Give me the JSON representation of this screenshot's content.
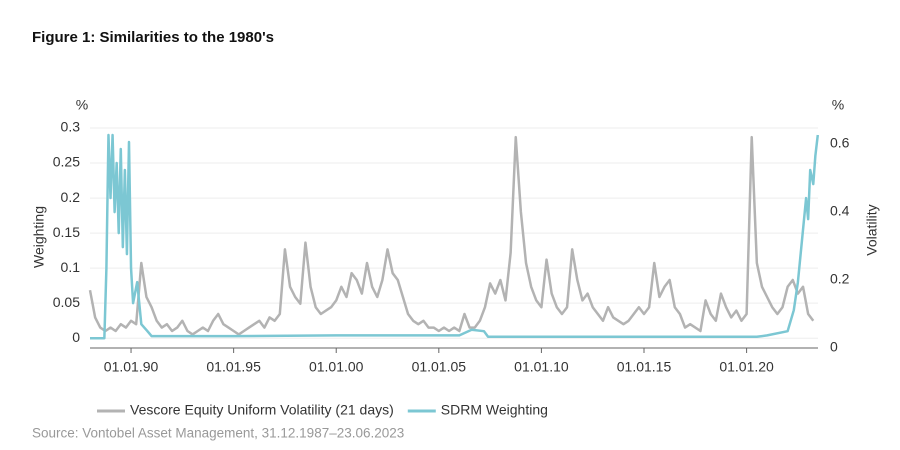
{
  "chart_data": {
    "type": "line",
    "title": "Figure 1: Similarities to the 1980's",
    "y_unit": "%",
    "y2_unit": "%",
    "ylabel": "Weighting",
    "y2label": "Volatility",
    "source": "Source: Vontobel Asset Management, 31.12.1987–23.06.2023",
    "xlim": [
      1988,
      2023.48
    ],
    "xticks": [
      {
        "value": 1990,
        "label": "01.01.90"
      },
      {
        "value": 1995,
        "label": "01.01.95"
      },
      {
        "value": 2000,
        "label": "01.01.00"
      },
      {
        "value": 2005,
        "label": "01.01.05"
      },
      {
        "value": 2010,
        "label": "01.01.10"
      },
      {
        "value": 2015,
        "label": "01.01.15"
      },
      {
        "value": 2020,
        "label": "01.01.20"
      }
    ],
    "ylim": [
      -0.014,
      0.3
    ],
    "yticks": [
      0,
      0.05,
      0.1,
      0.15,
      0.2,
      0.25,
      0.3
    ],
    "y2lim": [
      0,
      0.647
    ],
    "y2ticks": [
      0,
      0.2,
      0.4,
      0.6
    ],
    "grid": true,
    "series": [
      {
        "name": "Vescore Equity Uniform Volatility (21 days)",
        "color": "#b3b3b3",
        "axis": "y2",
        "x": [
          1988,
          1988.25,
          1988.5,
          1988.75,
          1989,
          1989.25,
          1989.5,
          1989.75,
          1990,
          1990.25,
          1990.5,
          1990.75,
          1991,
          1991.25,
          1991.5,
          1991.75,
          1992,
          1992.25,
          1992.5,
          1992.75,
          1993,
          1993.25,
          1993.5,
          1993.75,
          1994,
          1994.25,
          1994.5,
          1994.75,
          1995,
          1995.25,
          1995.5,
          1995.75,
          1996,
          1996.25,
          1996.5,
          1996.75,
          1997,
          1997.25,
          1997.5,
          1997.75,
          1998,
          1998.25,
          1998.5,
          1998.75,
          1999,
          1999.25,
          1999.5,
          1999.75,
          2000,
          2000.25,
          2000.5,
          2000.75,
          2001,
          2001.25,
          2001.5,
          2001.75,
          2002,
          2002.25,
          2002.5,
          2002.75,
          2003,
          2003.25,
          2003.5,
          2003.75,
          2004,
          2004.25,
          2004.5,
          2004.75,
          2005,
          2005.25,
          2005.5,
          2005.75,
          2006,
          2006.25,
          2006.5,
          2006.75,
          2007,
          2007.25,
          2007.5,
          2007.75,
          2008,
          2008.25,
          2008.5,
          2008.75,
          2009,
          2009.25,
          2009.5,
          2009.75,
          2010,
          2010.25,
          2010.5,
          2010.75,
          2011,
          2011.25,
          2011.5,
          2011.75,
          2012,
          2012.25,
          2012.5,
          2012.75,
          2013,
          2013.25,
          2013.5,
          2013.75,
          2014,
          2014.25,
          2014.5,
          2014.75,
          2015,
          2015.25,
          2015.5,
          2015.75,
          2016,
          2016.25,
          2016.5,
          2016.75,
          2017,
          2017.25,
          2017.5,
          2017.75,
          2018,
          2018.25,
          2018.5,
          2018.75,
          2019,
          2019.25,
          2019.5,
          2019.75,
          2020,
          2020.25,
          2020.5,
          2020.75,
          2021,
          2021.25,
          2021.5,
          2021.75,
          2022,
          2022.25,
          2022.5,
          2022.75,
          2023,
          2023.25
        ],
        "values": [
          0.17,
          0.09,
          0.06,
          0.05,
          0.06,
          0.05,
          0.07,
          0.06,
          0.08,
          0.07,
          0.25,
          0.15,
          0.12,
          0.08,
          0.06,
          0.07,
          0.05,
          0.06,
          0.08,
          0.05,
          0.04,
          0.05,
          0.06,
          0.05,
          0.08,
          0.1,
          0.07,
          0.06,
          0.05,
          0.04,
          0.05,
          0.06,
          0.07,
          0.08,
          0.06,
          0.09,
          0.08,
          0.1,
          0.29,
          0.18,
          0.15,
          0.13,
          0.31,
          0.18,
          0.12,
          0.1,
          0.11,
          0.12,
          0.14,
          0.18,
          0.15,
          0.22,
          0.2,
          0.16,
          0.25,
          0.18,
          0.15,
          0.2,
          0.29,
          0.22,
          0.2,
          0.15,
          0.1,
          0.08,
          0.07,
          0.08,
          0.06,
          0.06,
          0.05,
          0.06,
          0.05,
          0.06,
          0.05,
          0.1,
          0.06,
          0.06,
          0.08,
          0.12,
          0.19,
          0.16,
          0.2,
          0.14,
          0.28,
          0.62,
          0.4,
          0.25,
          0.18,
          0.14,
          0.12,
          0.26,
          0.16,
          0.12,
          0.1,
          0.12,
          0.29,
          0.2,
          0.14,
          0.16,
          0.12,
          0.1,
          0.08,
          0.12,
          0.09,
          0.08,
          0.07,
          0.08,
          0.1,
          0.12,
          0.1,
          0.12,
          0.25,
          0.15,
          0.18,
          0.2,
          0.12,
          0.1,
          0.06,
          0.07,
          0.06,
          0.05,
          0.14,
          0.1,
          0.08,
          0.16,
          0.12,
          0.09,
          0.11,
          0.08,
          0.1,
          0.62,
          0.25,
          0.18,
          0.15,
          0.12,
          0.1,
          0.12,
          0.18,
          0.2,
          0.16,
          0.18,
          0.1,
          0.08
        ]
      },
      {
        "name": "SDRM Weighting",
        "color": "#7cc7d3",
        "axis": "y",
        "x": [
          1988,
          1988.5,
          1988.7,
          1988.8,
          1988.9,
          1989,
          1989.1,
          1989.2,
          1989.3,
          1989.4,
          1989.5,
          1989.6,
          1989.7,
          1989.8,
          1989.9,
          1990,
          1990.1,
          1990.3,
          1990.5,
          1990.8,
          1991,
          1995,
          2000,
          2006,
          2006.6,
          2007.2,
          2007.4,
          2015,
          2020.5,
          2021,
          2022,
          2022.3,
          2022.5,
          2022.7,
          2022.9,
          2023,
          2023.1,
          2023.25,
          2023.35,
          2023.47
        ],
        "values": [
          0,
          0,
          0,
          0.1,
          0.29,
          0.2,
          0.29,
          0.18,
          0.25,
          0.15,
          0.27,
          0.13,
          0.24,
          0.12,
          0.28,
          0.1,
          0.05,
          0.08,
          0.02,
          0.01,
          0.003,
          0.003,
          0.004,
          0.004,
          0.012,
          0.01,
          0.002,
          0.002,
          0.002,
          0.004,
          0.01,
          0.04,
          0.08,
          0.14,
          0.2,
          0.17,
          0.24,
          0.22,
          0.26,
          0.29
        ]
      }
    ]
  }
}
